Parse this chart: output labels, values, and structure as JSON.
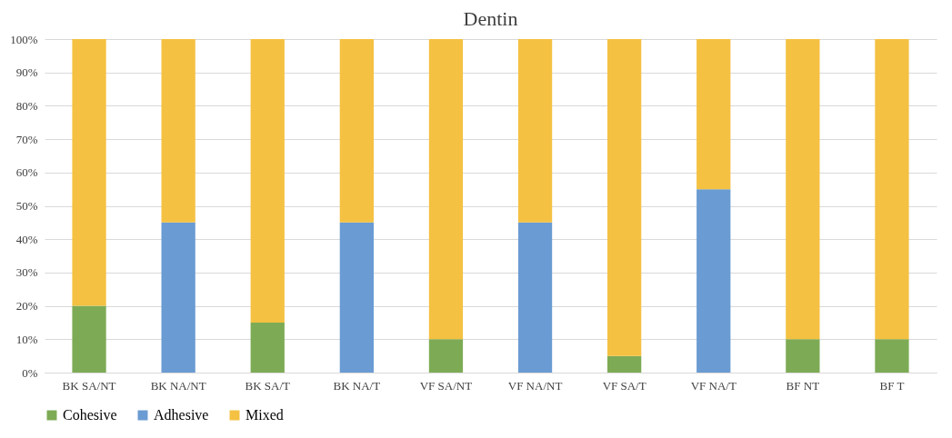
{
  "chart_data": {
    "type": "bar",
    "title": "Dentin",
    "stacked": true,
    "categories": [
      "BK SA/NT",
      "BK NA/NT",
      "BK SA/T",
      "BK NA/T",
      "VF SA/NT",
      "VF NA/NT",
      "VF SA/T",
      "VF NA/T",
      "BF NT",
      "BF T"
    ],
    "series": [
      {
        "name": "Cohesive",
        "color": "#7dab55",
        "values": [
          20,
          0,
          15,
          0,
          10,
          0,
          5,
          0,
          10,
          10
        ]
      },
      {
        "name": "Adhesive",
        "color": "#6a9bd2",
        "values": [
          0,
          45,
          0,
          45,
          0,
          45,
          0,
          55,
          0,
          0
        ]
      },
      {
        "name": "Mixed",
        "color": "#f4c142",
        "values": [
          80,
          55,
          85,
          55,
          90,
          55,
          95,
          45,
          90,
          90
        ]
      }
    ],
    "ylim": [
      0,
      100
    ],
    "yticks": [
      {
        "value": 0,
        "label": "0%"
      },
      {
        "value": 10,
        "label": "10%"
      },
      {
        "value": 20,
        "label": "20%"
      },
      {
        "value": 30,
        "label": "30%"
      },
      {
        "value": 40,
        "label": "40%"
      },
      {
        "value": 50,
        "label": "50%"
      },
      {
        "value": 60,
        "label": "60%"
      },
      {
        "value": 70,
        "label": "70%"
      },
      {
        "value": 80,
        "label": "80%"
      },
      {
        "value": 90,
        "label": "90%"
      },
      {
        "value": 100,
        "label": "100%"
      }
    ],
    "grid": "y",
    "legend": "bottom"
  }
}
